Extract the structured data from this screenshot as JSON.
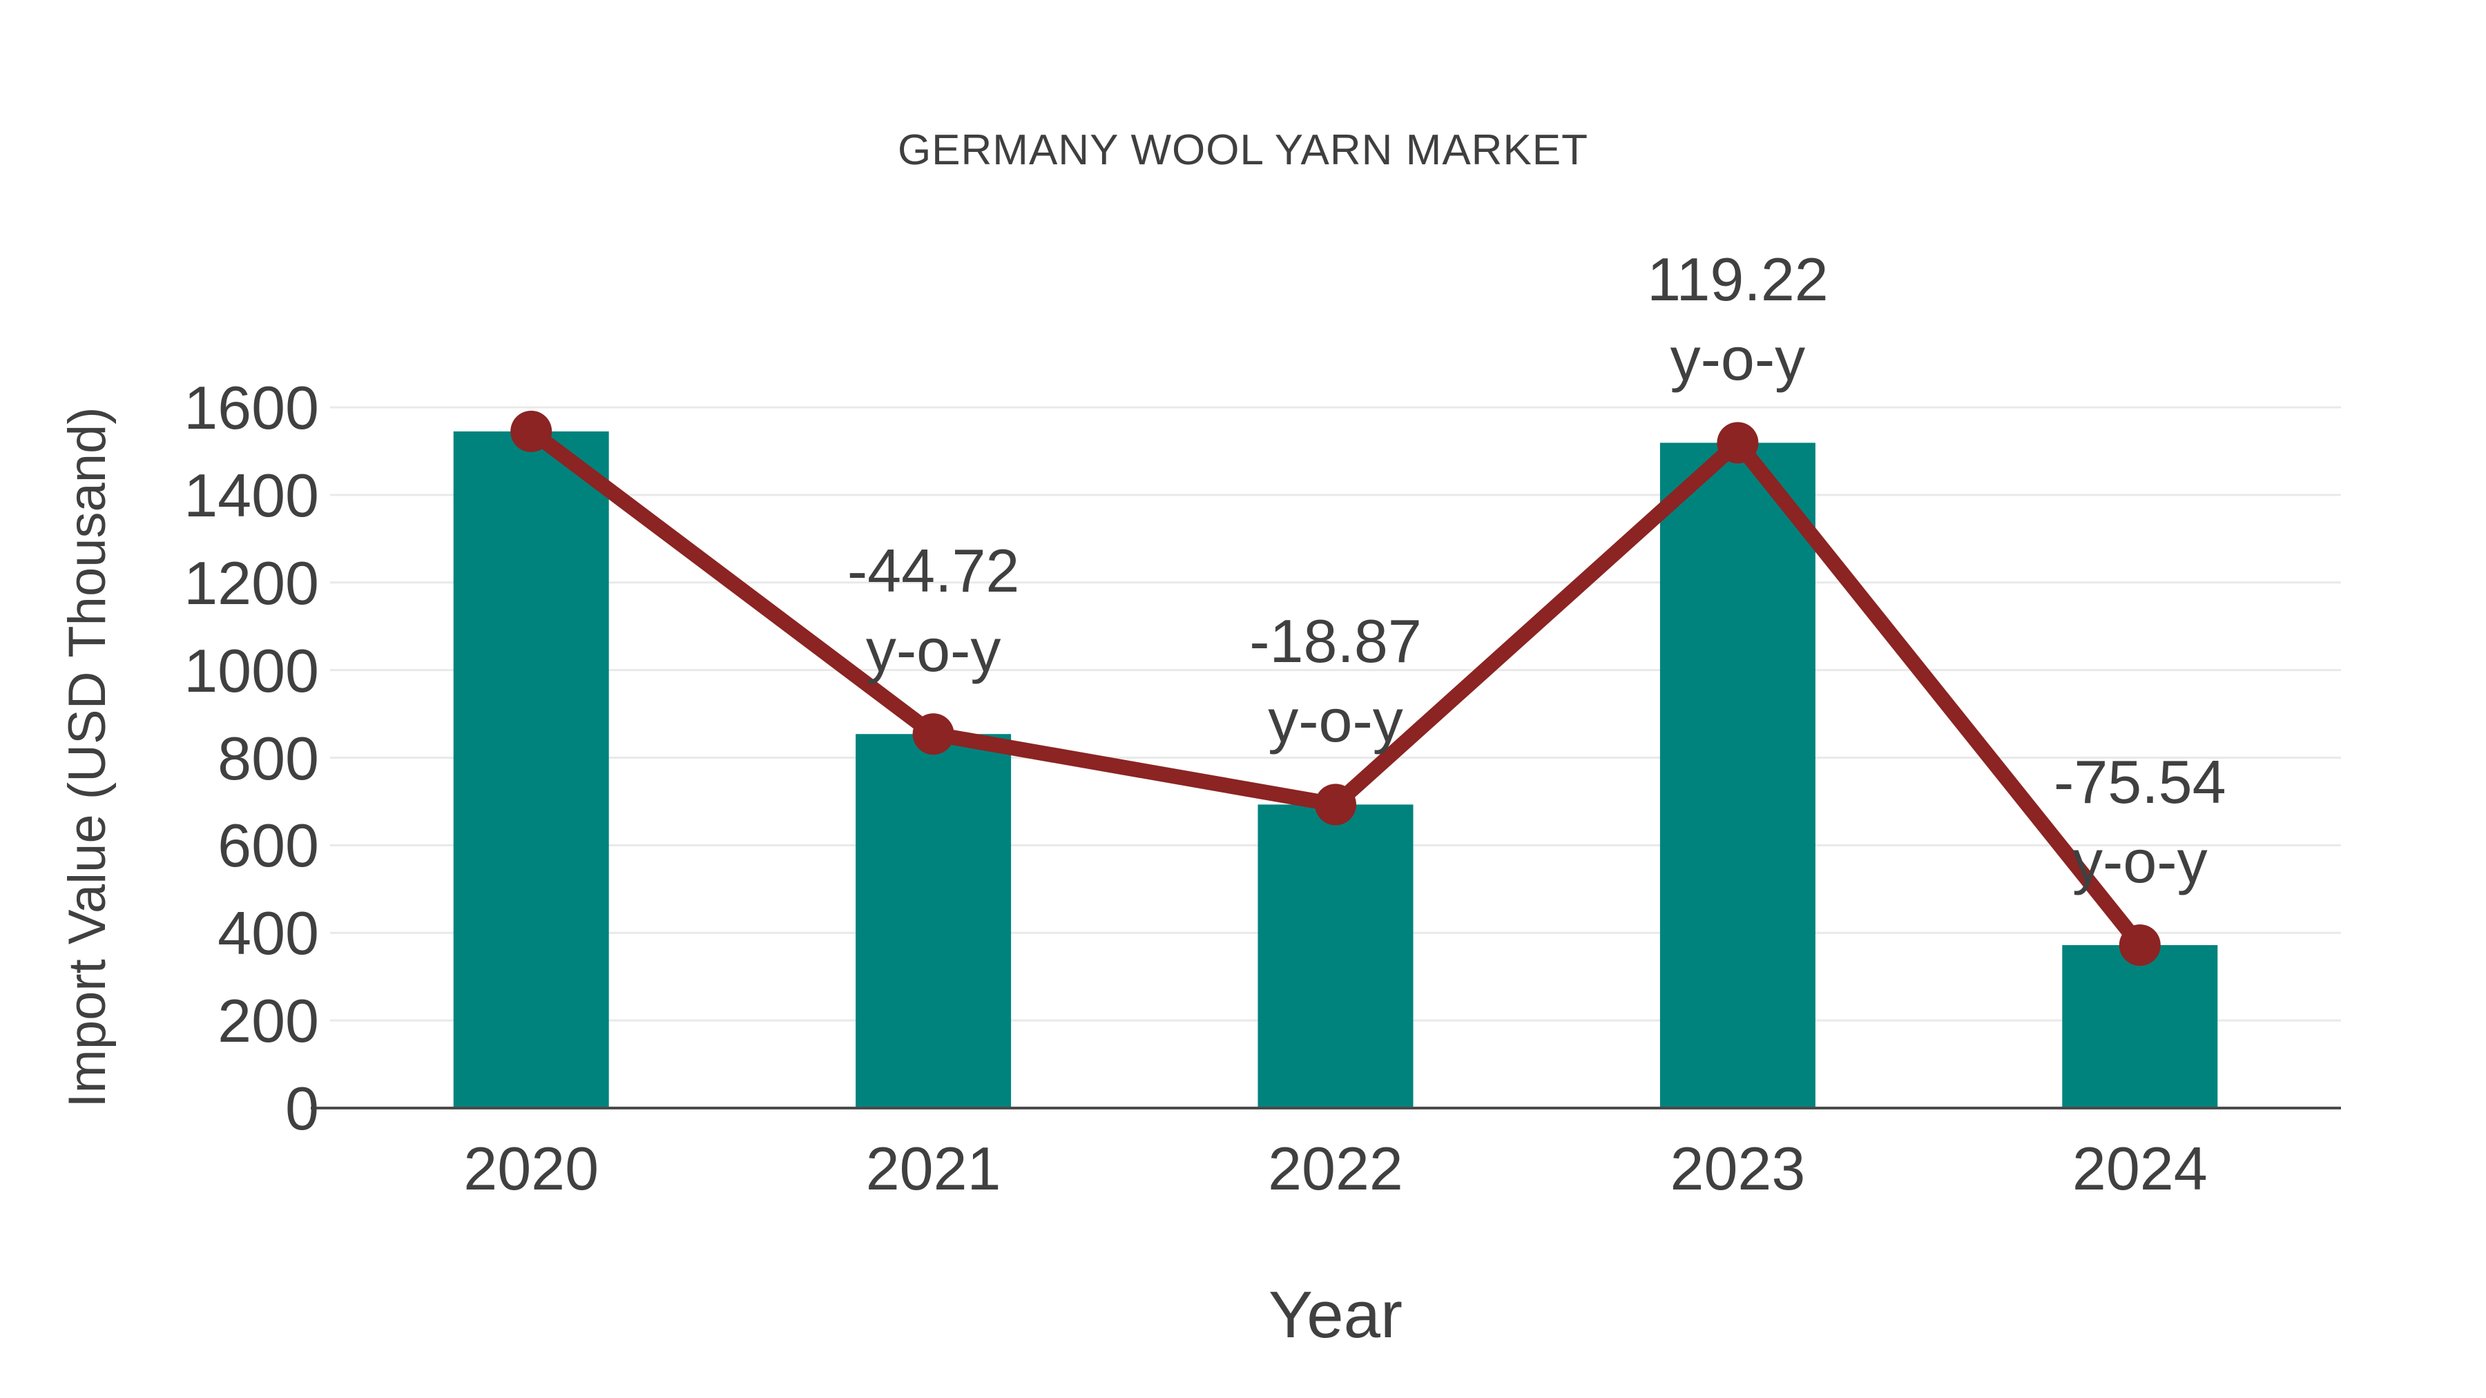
{
  "title": "GERMANY WOOL YARN MARKET",
  "colors": {
    "bar": "#00837d",
    "line": "#8b2423",
    "marker": "#8b2423",
    "text": "#404040",
    "title_text": "#3f3f3f",
    "gridline": "#e9e9e9",
    "axis_line": "#4b4b4b",
    "background": "#ffffff"
  },
  "chart_data": {
    "type": "bar",
    "title": "GERMANY WOOL YARN MARKET",
    "xlabel": "Year",
    "ylabel": "Import Value (USD Thousand)",
    "categories": [
      "2020",
      "2021",
      "2022",
      "2023",
      "2024"
    ],
    "series": [
      {
        "name": "Import Value (USD Thousand)",
        "type": "bar",
        "values": [
          1545,
          854,
          693,
          1519,
          372
        ]
      },
      {
        "name": "Import Value trend line",
        "type": "line",
        "values": [
          1545,
          854,
          693,
          1519,
          372
        ],
        "markers": true
      }
    ],
    "annotations": [
      {
        "category": "2021",
        "line1": "-44.72",
        "line2": "y-o-y",
        "value": -44.72
      },
      {
        "category": "2022",
        "line1": "-18.87",
        "line2": "y-o-y",
        "value": -18.87
      },
      {
        "category": "2023",
        "line1": "119.22",
        "line2": "y-o-y",
        "value": 119.22
      },
      {
        "category": "2024",
        "line1": "-75.54",
        "line2": "y-o-y",
        "value": -75.54
      }
    ],
    "yticks": [
      0,
      200,
      400,
      600,
      800,
      1000,
      1200,
      1400,
      1600
    ],
    "ylim": [
      0,
      1600
    ],
    "grid": true,
    "legend": false
  }
}
